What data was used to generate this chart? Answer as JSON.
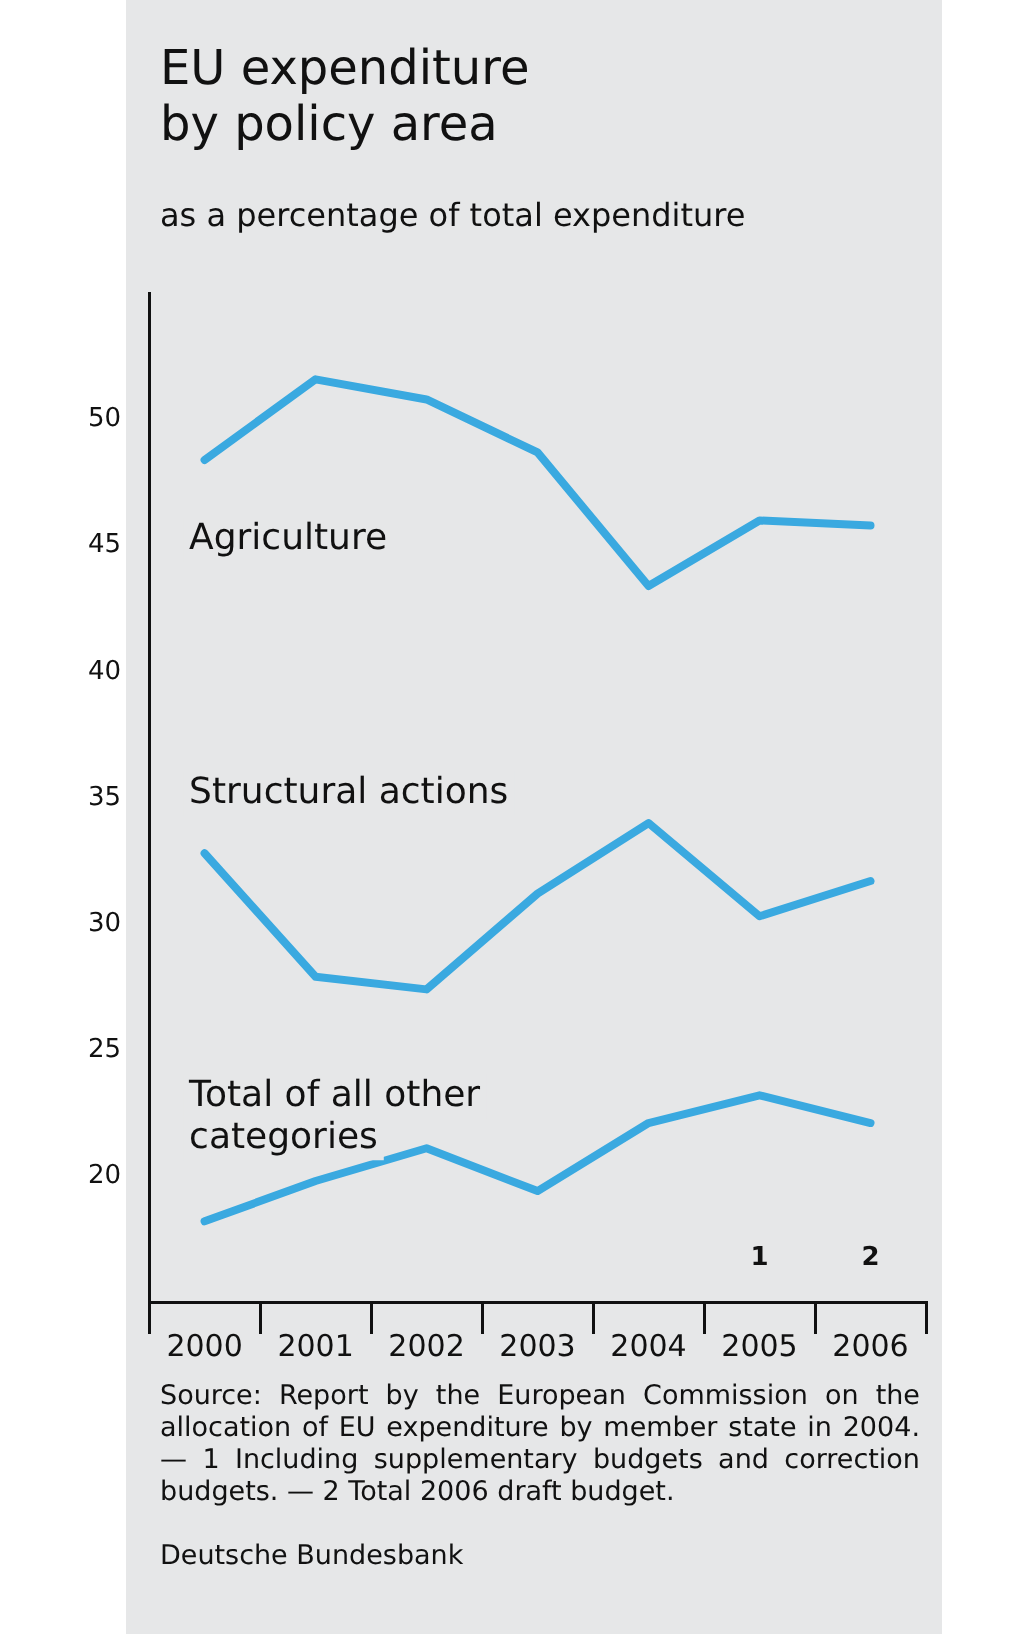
{
  "chart_data": {
    "type": "line",
    "title": "EU expenditure\nby policy area",
    "ylabel": "as a percentage of total expenditure",
    "categories": [
      "2000",
      "2001",
      "2002",
      "2003",
      "2004",
      "2005",
      "2006"
    ],
    "series": [
      {
        "name": "Agriculture",
        "color": "#3aa9e0",
        "values": [
          48.4,
          51.6,
          50.8,
          48.7,
          43.4,
          46.0,
          45.8
        ]
      },
      {
        "name": "Structural actions",
        "color": "#3aa9e0",
        "values": [
          32.8,
          27.9,
          27.4,
          31.2,
          34.0,
          30.3,
          31.7
        ]
      },
      {
        "name": "Total of all other categories",
        "color": "#3aa9e0",
        "values": [
          18.2,
          19.8,
          21.1,
          19.4,
          22.1,
          23.2,
          22.1
        ]
      }
    ],
    "ylim": [
      15,
      55
    ],
    "yticks": [
      20,
      25,
      30,
      35,
      40,
      45,
      50
    ],
    "grid": false,
    "legend": false,
    "marker": "none",
    "line_style": "solid",
    "annotations": [
      "1",
      "2",
      "Source: Report by the European Commission on the allocation of EU expenditure by member state in 2004. — 1 Including supplementary budgets and correction budgets. — 2 Total 2006 draft budget.",
      "Deutsche Bundesbank"
    ]
  }
}
